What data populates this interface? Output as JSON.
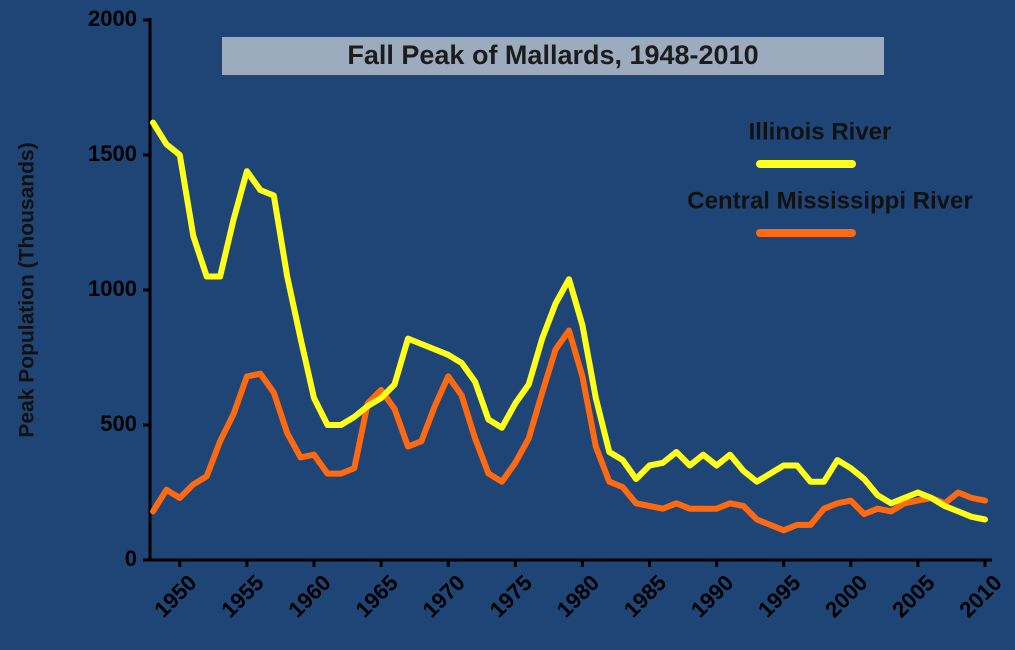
{
  "chart_data": {
    "type": "line",
    "title": "Fall Peak of Mallards, 1948-2010",
    "y_label": "Peak Population (Thousands)",
    "x": [
      1948,
      1949,
      1950,
      1951,
      1952,
      1953,
      1954,
      1955,
      1956,
      1957,
      1958,
      1959,
      1960,
      1961,
      1962,
      1963,
      1964,
      1965,
      1966,
      1967,
      1968,
      1969,
      1970,
      1971,
      1972,
      1973,
      1974,
      1975,
      1976,
      1977,
      1978,
      1979,
      1980,
      1981,
      1982,
      1983,
      1984,
      1985,
      1986,
      1987,
      1988,
      1989,
      1990,
      1991,
      1992,
      1993,
      1994,
      1995,
      1996,
      1997,
      1998,
      1999,
      2000,
      2001,
      2002,
      2003,
      2004,
      2005,
      2006,
      2007,
      2008,
      2009,
      2010
    ],
    "series": [
      {
        "name": "Illinois River",
        "color": "#ffff1a",
        "values": [
          1620,
          1540,
          1500,
          1200,
          1050,
          1050,
          1260,
          1440,
          1370,
          1350,
          1050,
          820,
          600,
          500,
          500,
          530,
          570,
          600,
          650,
          820,
          800,
          780,
          760,
          730,
          660,
          520,
          490,
          580,
          650,
          820,
          950,
          1040,
          870,
          600,
          400,
          370,
          300,
          350,
          360,
          400,
          350,
          390,
          350,
          390,
          330,
          290,
          320,
          350,
          350,
          290,
          290,
          370,
          340,
          300,
          240,
          210,
          230,
          250,
          230,
          200,
          180,
          160,
          150
        ]
      },
      {
        "name": "Central Mississippi River",
        "color": "#ff6a10",
        "values": [
          180,
          260,
          230,
          280,
          310,
          440,
          540,
          680,
          690,
          620,
          470,
          380,
          390,
          320,
          320,
          340,
          580,
          630,
          560,
          420,
          440,
          570,
          680,
          610,
          450,
          320,
          290,
          360,
          450,
          620,
          780,
          850,
          680,
          420,
          290,
          270,
          210,
          200,
          190,
          210,
          190,
          190,
          190,
          210,
          200,
          150,
          130,
          110,
          130,
          130,
          190,
          210,
          220,
          170,
          190,
          180,
          210,
          220,
          230,
          210,
          250,
          230,
          220
        ]
      }
    ],
    "xlim": [
      1948,
      2010
    ],
    "xticks": [
      1950,
      1955,
      1960,
      1965,
      1970,
      1975,
      1980,
      1985,
      1990,
      1995,
      2000,
      2005,
      2010
    ],
    "ylim": [
      0,
      2000
    ],
    "yticks": [
      0,
      500,
      1000,
      1500,
      2000
    ],
    "grid": false
  }
}
